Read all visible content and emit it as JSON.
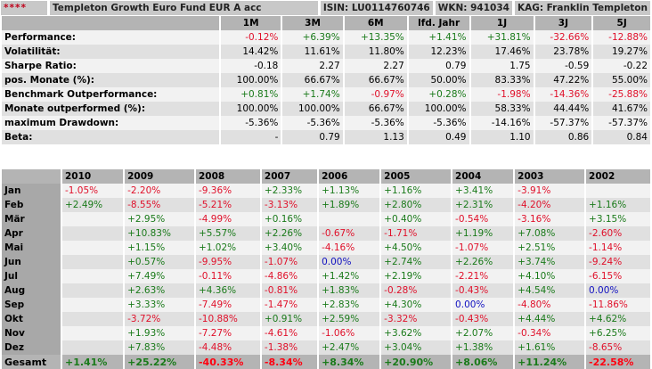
{
  "header": {
    "stars": "****",
    "fund": "Templeton Growth Euro Fund EUR A acc",
    "isin": "ISIN: LU0114760746",
    "wkn": "WKN: 941034",
    "kag": "KAG: Franklin Templeton"
  },
  "colors": {
    "positive": "#1a7a1a",
    "negative": "#e0102a",
    "zero": "#1010c0",
    "stars": "#c0001a"
  },
  "stats": {
    "columns": [
      "1M",
      "3M",
      "6M",
      "lfd. Jahr",
      "1J",
      "3J",
      "5J"
    ],
    "rows": [
      {
        "label": "Performance:",
        "values": [
          "-0.12%",
          "+6.39%",
          "+13.35%",
          "+1.41%",
          "+31.81%",
          "-32.66%",
          "-12.88%"
        ],
        "colored": true
      },
      {
        "label": "Volatilität:",
        "values": [
          "14.42%",
          "11.61%",
          "11.80%",
          "12.23%",
          "17.46%",
          "23.78%",
          "19.27%"
        ]
      },
      {
        "label": "Sharpe Ratio:",
        "values": [
          "-0.18",
          "2.27",
          "2.27",
          "0.79",
          "1.75",
          "-0.59",
          "-0.22"
        ]
      },
      {
        "label": "pos. Monate (%):",
        "values": [
          "100.00%",
          "66.67%",
          "66.67%",
          "50.00%",
          "83.33%",
          "47.22%",
          "55.00%"
        ]
      },
      {
        "label": "Benchmark Outperformance:",
        "values": [
          "+0.81%",
          "+1.74%",
          "-0.97%",
          "+0.28%",
          "-1.98%",
          "-14.36%",
          "-25.88%"
        ],
        "colored": true
      },
      {
        "label": "Monate outperformed (%):",
        "values": [
          "100.00%",
          "100.00%",
          "66.67%",
          "100.00%",
          "58.33%",
          "44.44%",
          "41.67%"
        ]
      },
      {
        "label": "maximum Drawdown:",
        "values": [
          "-5.36%",
          "-5.36%",
          "-5.36%",
          "-5.36%",
          "-14.16%",
          "-57.37%",
          "-57.37%"
        ]
      },
      {
        "label": "Beta:",
        "values": [
          "-",
          "0.79",
          "1.13",
          "0.49",
          "1.10",
          "0.86",
          "0.84"
        ]
      }
    ]
  },
  "monthly": {
    "years": [
      "2010",
      "2009",
      "2008",
      "2007",
      "2006",
      "2005",
      "2004",
      "2003",
      "2002"
    ],
    "rows": [
      {
        "label": "Jan",
        "values": [
          "-1.05%",
          "-2.20%",
          "-9.36%",
          "+2.33%",
          "+1.13%",
          "+1.16%",
          "+3.41%",
          "-3.91%",
          ""
        ]
      },
      {
        "label": "Feb",
        "values": [
          "+2.49%",
          "-8.55%",
          "-5.21%",
          "-3.13%",
          "+1.89%",
          "+2.80%",
          "+2.31%",
          "-4.20%",
          "+1.16%"
        ]
      },
      {
        "label": "Mär",
        "values": [
          "",
          "+2.95%",
          "-4.99%",
          "+0.16%",
          "",
          "+0.40%",
          "-0.54%",
          "-3.16%",
          "+3.15%"
        ]
      },
      {
        "label": "Apr",
        "values": [
          "",
          "+10.83%",
          "+5.57%",
          "+2.26%",
          "-0.67%",
          "-1.71%",
          "+1.19%",
          "+7.08%",
          "-2.60%"
        ]
      },
      {
        "label": "Mai",
        "values": [
          "",
          "+1.15%",
          "+1.02%",
          "+3.40%",
          "-4.16%",
          "+4.50%",
          "-1.07%",
          "+2.51%",
          "-1.14%"
        ]
      },
      {
        "label": "Jun",
        "values": [
          "",
          "+0.57%",
          "-9.95%",
          "-1.07%",
          "0.00%",
          "+2.74%",
          "+2.26%",
          "+3.74%",
          "-9.24%"
        ]
      },
      {
        "label": "Jul",
        "values": [
          "",
          "+7.49%",
          "-0.11%",
          "-4.86%",
          "+1.42%",
          "+2.19%",
          "-2.21%",
          "+4.10%",
          "-6.15%"
        ]
      },
      {
        "label": "Aug",
        "values": [
          "",
          "+2.63%",
          "+4.36%",
          "-0.81%",
          "+1.83%",
          "-0.28%",
          "-0.43%",
          "+4.54%",
          "0.00%"
        ]
      },
      {
        "label": "Sep",
        "values": [
          "",
          "+3.33%",
          "-7.49%",
          "-1.47%",
          "+2.83%",
          "+4.30%",
          "0.00%",
          "-4.80%",
          "-11.86%"
        ]
      },
      {
        "label": "Okt",
        "values": [
          "",
          "-3.72%",
          "-10.88%",
          "+0.91%",
          "+2.59%",
          "-3.32%",
          "-0.43%",
          "+4.44%",
          "+4.62%"
        ]
      },
      {
        "label": "Nov",
        "values": [
          "",
          "+1.93%",
          "-7.27%",
          "-4.61%",
          "-1.06%",
          "+3.62%",
          "+2.07%",
          "-0.34%",
          "+6.25%"
        ]
      },
      {
        "label": "Dez",
        "values": [
          "",
          "+7.83%",
          "-4.48%",
          "-1.38%",
          "+2.47%",
          "+3.04%",
          "+1.38%",
          "+1.61%",
          "-8.65%"
        ]
      }
    ],
    "total": {
      "label": "Gesamt",
      "values": [
        "+1.41%",
        "+25.22%",
        "-40.33%",
        "-8.34%",
        "+8.34%",
        "+20.90%",
        "+8.06%",
        "+11.24%",
        "-22.58%"
      ]
    }
  }
}
